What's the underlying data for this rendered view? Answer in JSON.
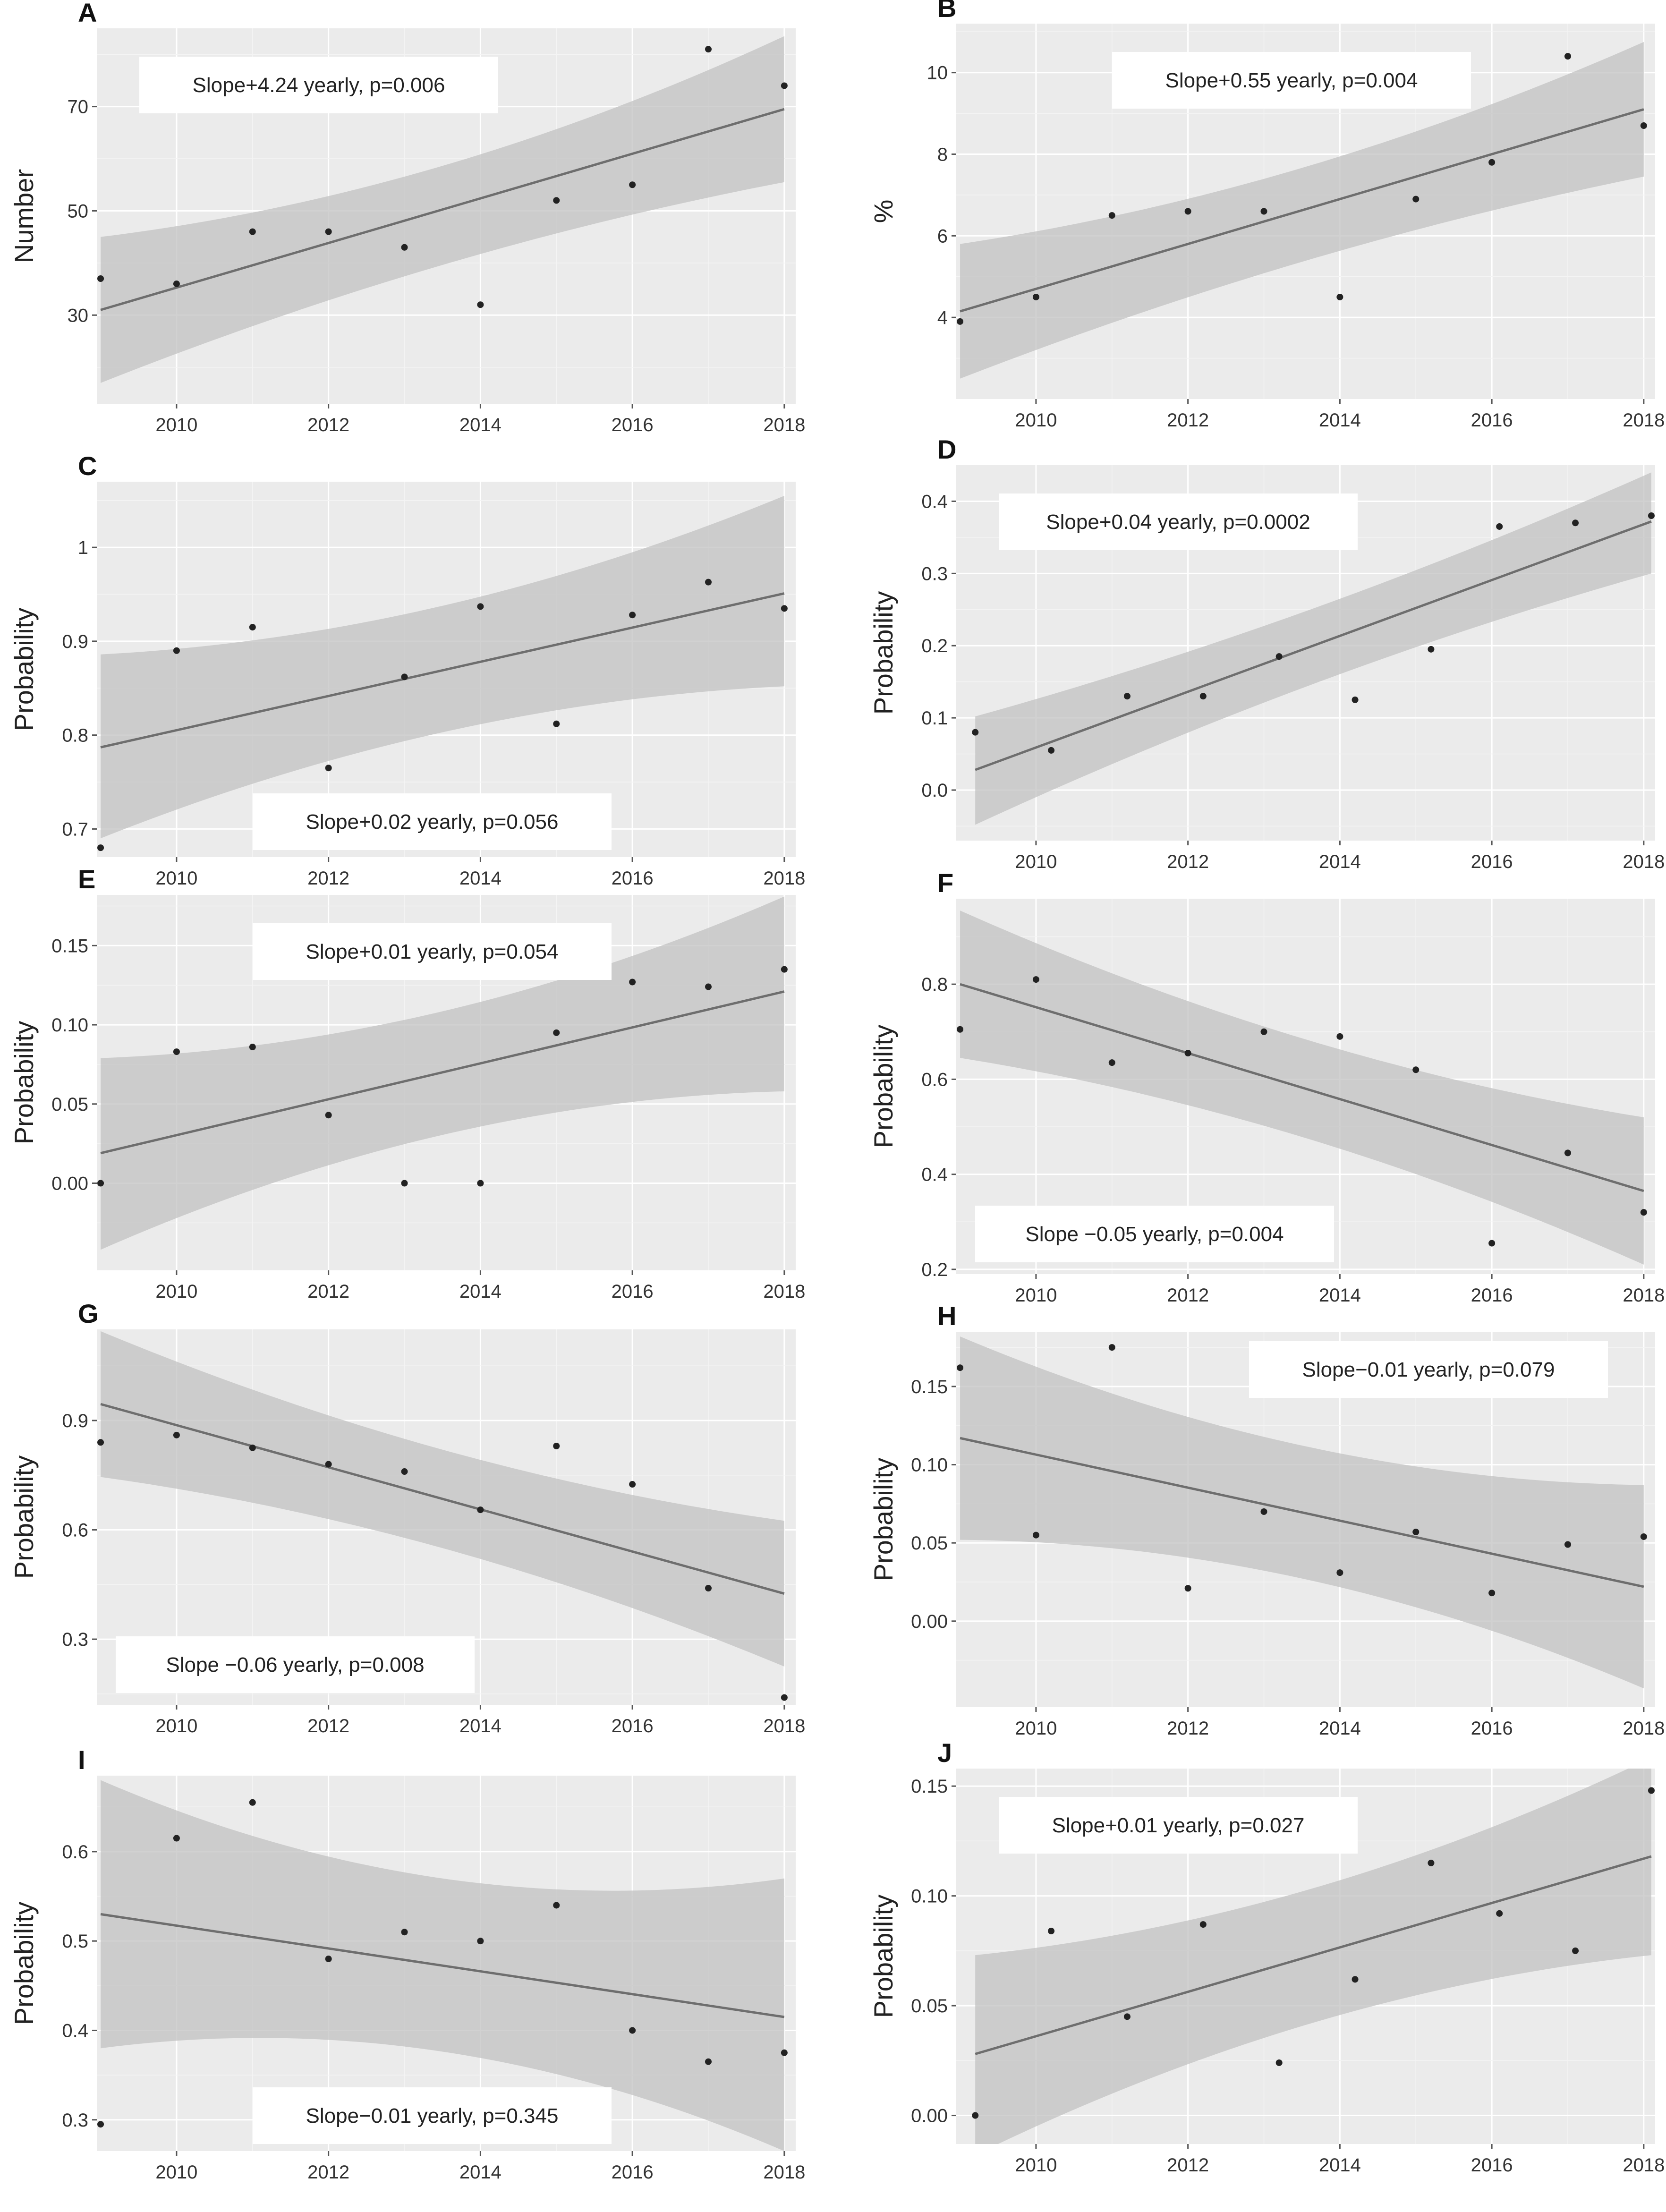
{
  "figure": {
    "background": "#ffffff",
    "panel_bg": "#ebebeb",
    "ribbon_color": "#c2c2c2",
    "line_color": "#6e6e6e",
    "point_color": "#222222"
  },
  "chart_data": [
    {
      "id": "A",
      "type": "scatter",
      "title": "A",
      "xlabel": "",
      "ylabel": "Number",
      "x": [
        2009,
        2010,
        2011,
        2012,
        2013,
        2014,
        2015,
        2016,
        2017,
        2018
      ],
      "values": [
        37,
        36,
        46,
        46,
        43,
        32,
        52,
        55,
        81,
        74
      ],
      "fit": {
        "start": 31,
        "end": 69.5
      },
      "ci": {
        "lower_start": 17,
        "lower_end": 55.5,
        "upper_start": 45,
        "upper_end": 83.5,
        "mid_lower": 43,
        "mid_upper": 53
      },
      "ylim": [
        13,
        85
      ],
      "yticks": [
        30,
        50,
        70
      ],
      "ytick_labels": [
        "30",
        "50",
        "70"
      ],
      "xlim": [
        2008.95,
        2018.15
      ],
      "xticks": [
        2010,
        2012,
        2014,
        2016,
        2018
      ],
      "annotation": "Slope+4.24 yearly, p=0.006",
      "annotation_pos": "top-left"
    },
    {
      "id": "B",
      "type": "scatter",
      "title": "B",
      "xlabel": "",
      "ylabel": "%",
      "x": [
        2009,
        2010,
        2011,
        2012,
        2013,
        2014,
        2015,
        2016,
        2017,
        2018
      ],
      "values": [
        3.9,
        4.5,
        6.5,
        6.6,
        6.6,
        4.5,
        6.9,
        7.8,
        10.4,
        8.7
      ],
      "fit": {
        "start": 4.15,
        "end": 9.1
      },
      "ci": {
        "lower_start": 2.5,
        "lower_end": 7.45,
        "upper_start": 5.8,
        "upper_end": 10.75,
        "mid_lower": 5.75,
        "mid_upper": 7.05
      },
      "ylim": [
        2.0,
        11.2
      ],
      "yticks": [
        4,
        6,
        8,
        10
      ],
      "ytick_labels": [
        "4",
        "6",
        "8",
        "10"
      ],
      "xlim": [
        2008.95,
        2018.15
      ],
      "xticks": [
        2010,
        2012,
        2014,
        2016,
        2018
      ],
      "annotation": "Slope+0.55 yearly, p=0.004",
      "annotation_pos": "top"
    },
    {
      "id": "C",
      "type": "scatter",
      "title": "C",
      "xlabel": "",
      "ylabel": "Probability",
      "x": [
        2009,
        2010,
        2011,
        2012,
        2013,
        2014,
        2015,
        2016,
        2017,
        2018
      ],
      "values": [
        0.68,
        0.89,
        0.915,
        0.765,
        0.862,
        0.937,
        0.812,
        0.928,
        0.963,
        0.935
      ],
      "fit": {
        "start": 0.787,
        "end": 0.951
      },
      "ci": {
        "lower_start": 0.69,
        "lower_end": 0.852,
        "upper_start": 0.886,
        "upper_end": 1.055,
        "mid_lower": 0.835,
        "mid_upper": 0.905
      },
      "ylim": [
        0.67,
        1.07
      ],
      "yticks": [
        0.7,
        0.8,
        0.9,
        1.0
      ],
      "ytick_labels": [
        "0.7",
        "0.8",
        "0.9",
        "1"
      ],
      "xlim": [
        2008.95,
        2018.15
      ],
      "xticks": [
        2010,
        2012,
        2014,
        2016,
        2018
      ],
      "annotation": "Slope+0.02 yearly, p=0.056",
      "annotation_pos": "bottom"
    },
    {
      "id": "D",
      "type": "scatter",
      "title": "D",
      "xlabel": "",
      "ylabel": "Probability",
      "x": [
        2009.2,
        2010.2,
        2011.2,
        2012.2,
        2013.2,
        2014.2,
        2015.2,
        2016.1,
        2017.1,
        2018.1
      ],
      "values": [
        0.08,
        0.055,
        0.13,
        0.13,
        0.185,
        0.125,
        0.195,
        0.365,
        0.37,
        0.38
      ],
      "fit": {
        "start": 0.028,
        "end": 0.372
      },
      "ci": {
        "lower_start": -0.048,
        "lower_end": 0.3,
        "upper_start": 0.102,
        "upper_end": 0.44,
        "mid_lower": 0.168,
        "mid_upper": 0.232
      },
      "ylim": [
        -0.07,
        0.45
      ],
      "yticks": [
        0.0,
        0.1,
        0.2,
        0.3,
        0.4
      ],
      "ytick_labels": [
        "0.0",
        "0.1",
        "0.2",
        "0.3",
        "0.4"
      ],
      "xlim": [
        2008.95,
        2018.15
      ],
      "xticks": [
        2010,
        2012,
        2014,
        2016,
        2018
      ],
      "annotation": "Slope+0.04 yearly, p=0.0002",
      "annotation_pos": "top-left"
    },
    {
      "id": "E",
      "type": "scatter",
      "title": "E",
      "xlabel": "",
      "ylabel": "Probability",
      "x": [
        2009,
        2010,
        2011,
        2012,
        2013,
        2014,
        2015,
        2016,
        2017,
        2018
      ],
      "values": [
        0.0,
        0.083,
        0.086,
        0.043,
        0.0,
        0.0,
        0.095,
        0.127,
        0.124,
        0.135
      ],
      "fit": {
        "start": 0.019,
        "end": 0.121
      },
      "ci": {
        "lower_start": -0.042,
        "lower_end": 0.058,
        "upper_start": 0.079,
        "upper_end": 0.181,
        "mid_lower": 0.053,
        "mid_upper": 0.087
      },
      "ylim": [
        -0.055,
        0.182
      ],
      "yticks": [
        0.0,
        0.05,
        0.1,
        0.15
      ],
      "ytick_labels": [
        "0.00",
        "0.05",
        "0.10",
        "0.15"
      ],
      "xlim": [
        2008.95,
        2018.15
      ],
      "xticks": [
        2010,
        2012,
        2014,
        2016,
        2018
      ],
      "annotation": "Slope+0.01 yearly, p=0.054",
      "annotation_pos": "top"
    },
    {
      "id": "F",
      "type": "scatter",
      "title": "F",
      "xlabel": "",
      "ylabel": "Probability",
      "x": [
        2009,
        2010,
        2011,
        2012,
        2013,
        2014,
        2015,
        2016,
        2017,
        2018
      ],
      "values": [
        0.705,
        0.81,
        0.635,
        0.655,
        0.7,
        0.69,
        0.62,
        0.255,
        0.445,
        0.32
      ],
      "fit": {
        "start": 0.8,
        "end": 0.365
      },
      "ci": {
        "lower_start": 0.645,
        "lower_end": 0.21,
        "upper_start": 0.955,
        "upper_end": 0.52,
        "mid_lower": 0.53,
        "mid_upper": 0.635
      },
      "ylim": [
        0.19,
        0.98
      ],
      "yticks": [
        0.2,
        0.4,
        0.6,
        0.8
      ],
      "ytick_labels": [
        "0.2",
        "0.4",
        "0.6",
        "0.8"
      ],
      "xlim": [
        2008.95,
        2018.15
      ],
      "xticks": [
        2010,
        2012,
        2014,
        2016,
        2018
      ],
      "annotation": "Slope −0.05 yearly, p=0.004",
      "annotation_pos": "bottom-left"
    },
    {
      "id": "G",
      "type": "scatter",
      "title": "G",
      "xlabel": "",
      "ylabel": "Probability",
      "x": [
        2009,
        2010,
        2011,
        2012,
        2013,
        2014,
        2015,
        2016,
        2017,
        2018
      ],
      "values": [
        0.84,
        0.86,
        0.825,
        0.78,
        0.76,
        0.655,
        0.83,
        0.725,
        0.44,
        0.14
      ],
      "fit": {
        "start": 0.945,
        "end": 0.425
      },
      "ci": {
        "lower_start": 0.745,
        "lower_end": 0.225,
        "upper_start": 1.145,
        "upper_end": 0.625,
        "mid_lower": 0.615,
        "mid_upper": 0.755
      },
      "ylim": [
        0.12,
        1.15
      ],
      "yticks": [
        0.3,
        0.6,
        0.9
      ],
      "ytick_labels": [
        "0.3",
        "0.6",
        "0.9"
      ],
      "xlim": [
        2008.95,
        2018.15
      ],
      "xticks": [
        2010,
        2012,
        2014,
        2016,
        2018
      ],
      "annotation": "Slope −0.06 yearly, p=0.008",
      "annotation_pos": "bottom-left"
    },
    {
      "id": "H",
      "type": "scatter",
      "title": "H",
      "xlabel": "",
      "ylabel": "Probability",
      "x": [
        2009,
        2010,
        2011,
        2012,
        2013,
        2014,
        2015,
        2016,
        2017,
        2018
      ],
      "values": [
        0.162,
        0.055,
        0.175,
        0.021,
        0.07,
        0.031,
        0.057,
        0.018,
        0.049,
        0.054
      ],
      "fit": {
        "start": 0.117,
        "end": 0.022
      },
      "ci": {
        "lower_start": 0.052,
        "lower_end": -0.043,
        "upper_start": 0.182,
        "upper_end": 0.087,
        "mid_lower": 0.05,
        "mid_upper": 0.09
      },
      "ylim": [
        -0.055,
        0.185
      ],
      "yticks": [
        0.0,
        0.05,
        0.1,
        0.15
      ],
      "ytick_labels": [
        "0.00",
        "0.05",
        "0.10",
        "0.15"
      ],
      "xlim": [
        2008.95,
        2018.15
      ],
      "xticks": [
        2010,
        2012,
        2014,
        2016,
        2018
      ],
      "annotation": "Slope−0.01 yearly, p=0.079",
      "annotation_pos": "top-right"
    },
    {
      "id": "I",
      "type": "scatter",
      "title": "I",
      "xlabel": "",
      "ylabel": "Probability",
      "x": [
        2009,
        2010,
        2011,
        2012,
        2013,
        2014,
        2015,
        2016,
        2017,
        2018
      ],
      "values": [
        0.295,
        0.615,
        0.655,
        0.48,
        0.51,
        0.5,
        0.54,
        0.4,
        0.365,
        0.375
      ],
      "fit": {
        "start": 0.53,
        "end": 0.415
      },
      "ci": {
        "lower_start": 0.38,
        "lower_end": 0.265,
        "upper_start": 0.68,
        "upper_end": 0.57,
        "mid_lower": 0.43,
        "mid_upper": 0.515
      },
      "ylim": [
        0.265,
        0.685
      ],
      "yticks": [
        0.3,
        0.4,
        0.5,
        0.6
      ],
      "ytick_labels": [
        "0.3",
        "0.4",
        "0.5",
        "0.6"
      ],
      "xlim": [
        2008.95,
        2018.15
      ],
      "xticks": [
        2010,
        2012,
        2014,
        2016,
        2018
      ],
      "annotation": "Slope−0.01 yearly, p=0.345",
      "annotation_pos": "bottom"
    },
    {
      "id": "J",
      "type": "scatter",
      "title": "J",
      "xlabel": "",
      "ylabel": "Probability",
      "x": [
        2009.2,
        2010.2,
        2011.2,
        2012.2,
        2013.2,
        2014.2,
        2015.2,
        2016.1,
        2017.1,
        2018.1
      ],
      "values": [
        0.0,
        0.084,
        0.045,
        0.087,
        0.024,
        0.062,
        0.115,
        0.092,
        0.075,
        0.148
      ],
      "fit": {
        "start": 0.028,
        "end": 0.118
      },
      "ci": {
        "lower_start": -0.018,
        "lower_end": 0.073,
        "upper_start": 0.073,
        "upper_end": 0.163,
        "mid_lower": 0.057,
        "mid_upper": 0.089
      },
      "ylim": [
        -0.013,
        0.158
      ],
      "yticks": [
        0.0,
        0.05,
        0.1,
        0.15
      ],
      "ytick_labels": [
        "0.00",
        "0.05",
        "0.10",
        "0.15"
      ],
      "xlim": [
        2008.95,
        2018.15
      ],
      "xticks": [
        2010,
        2012,
        2014,
        2016,
        2018
      ],
      "annotation": "Slope+0.01 yearly, p=0.027",
      "annotation_pos": "top-left"
    }
  ]
}
